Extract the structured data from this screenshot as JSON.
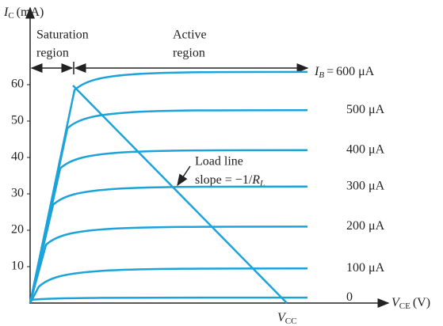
{
  "chart_data": {
    "type": "transistor-curves",
    "y_label": {
      "symbol": "I",
      "sub": "C",
      "unit": "(mA)"
    },
    "x_label": {
      "symbol": "V",
      "sub": "CE",
      "unit": "(V)"
    },
    "ylim": [
      0,
      80
    ],
    "yticks": [
      10,
      20,
      30,
      40,
      50,
      60
    ],
    "color": "#1ba3da",
    "series": [
      {
        "name": "0",
        "value": 1.5
      },
      {
        "name": "100 μA",
        "value": 9.5
      },
      {
        "name": "200 μA",
        "value": 21
      },
      {
        "name": "300 μA",
        "value": 32
      },
      {
        "name": "400 μA",
        "value": 42
      },
      {
        "name": "500 μA",
        "value": 53
      },
      {
        "name": "600 μA",
        "value": 63.5
      }
    ],
    "ib_label": {
      "symbol": "I",
      "sub": "B",
      "eq": "="
    },
    "regions": {
      "saturation": [
        "Saturation",
        "region"
      ],
      "active": [
        "Active",
        "region"
      ]
    },
    "load_line": {
      "title": "Load line",
      "slope": "slope = −1/",
      "r": "R",
      "r_sub": "L"
    },
    "vcc": {
      "symbol": "V",
      "sub": "CC"
    }
  }
}
